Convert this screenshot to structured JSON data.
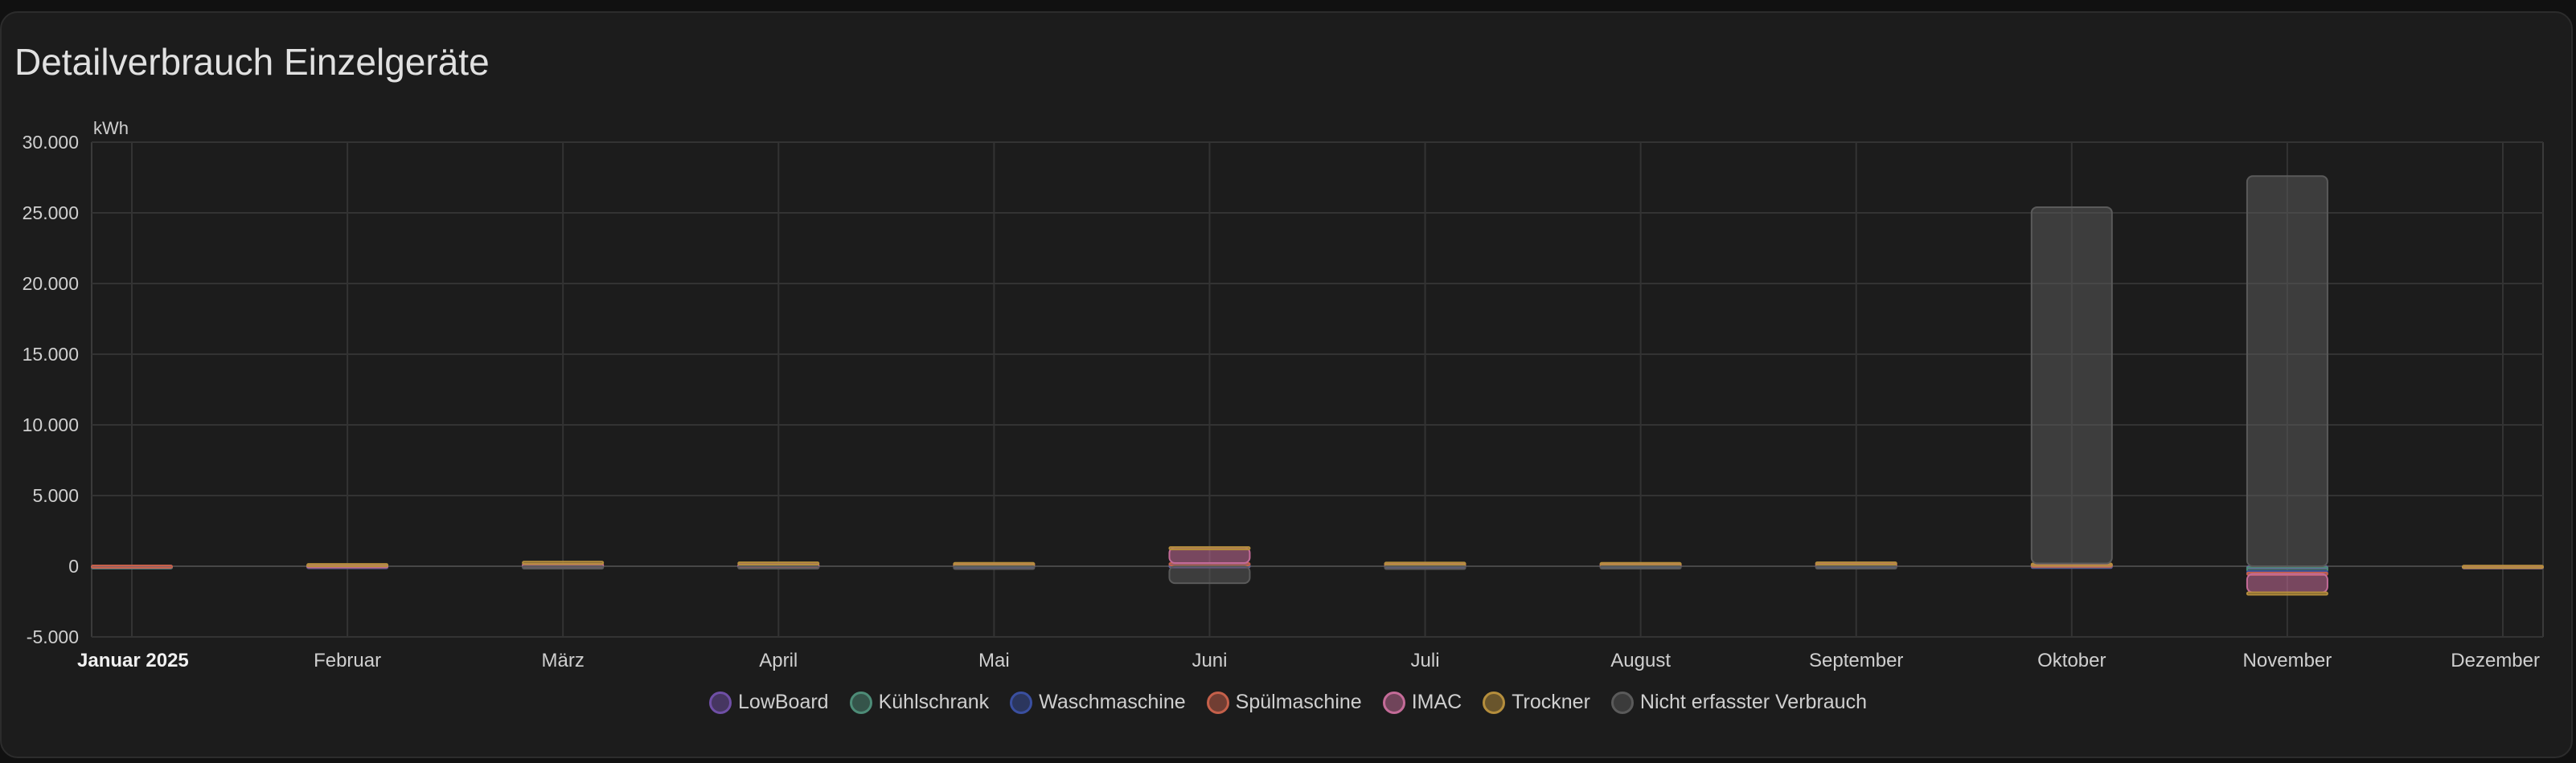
{
  "card": {
    "title": "Detailverbrauch Einzelgeräte"
  },
  "chart_data": {
    "type": "bar",
    "stacked": true,
    "ylabel": "kWh",
    "ylim": [
      -5000,
      30000
    ],
    "yticks": [
      "30.000",
      "25.000",
      "20.000",
      "15.000",
      "10.000",
      "5.000",
      "0",
      "-5.000"
    ],
    "grid": true,
    "legend_position": "bottom",
    "categories": [
      "Januar 2025",
      "Februar",
      "März",
      "April",
      "Mai",
      "Juni",
      "Juli",
      "August",
      "September",
      "Oktober",
      "November",
      "Dezember"
    ],
    "series": [
      {
        "name": "LowBoard",
        "color": "#6f4fa6",
        "values": [
          5,
          20,
          40,
          30,
          60,
          80,
          70,
          60,
          70,
          40,
          -50,
          10
        ]
      },
      {
        "name": "Kühlschrank",
        "color": "#4d8c77",
        "values": [
          5,
          20,
          40,
          30,
          60,
          80,
          70,
          60,
          70,
          40,
          -300,
          10
        ]
      },
      {
        "name": "Waschmaschine",
        "color": "#3a4fa0",
        "values": [
          40,
          10,
          20,
          20,
          20,
          30,
          20,
          20,
          20,
          20,
          -100,
          5
        ]
      },
      {
        "name": "Spülmaschine",
        "color": "#c5604a",
        "values": [
          5,
          30,
          40,
          40,
          20,
          40,
          20,
          20,
          20,
          20,
          -100,
          5
        ]
      },
      {
        "name": "IMAC",
        "color": "#c46b98",
        "values": [
          0,
          20,
          40,
          30,
          60,
          1100,
          60,
          60,
          80,
          60,
          -1300,
          5
        ]
      },
      {
        "name": "Trockner",
        "color": "#b58e3c",
        "values": [
          0,
          60,
          150,
          130,
          20,
          30,
          20,
          20,
          20,
          20,
          -100,
          5
        ]
      },
      {
        "name": "Nicht erfasster Verbrauch",
        "color": "#5a5a5a",
        "values": [
          0,
          0,
          -150,
          -150,
          -200,
          -1200,
          -200,
          -150,
          -150,
          25200,
          27600,
          0
        ]
      }
    ]
  }
}
